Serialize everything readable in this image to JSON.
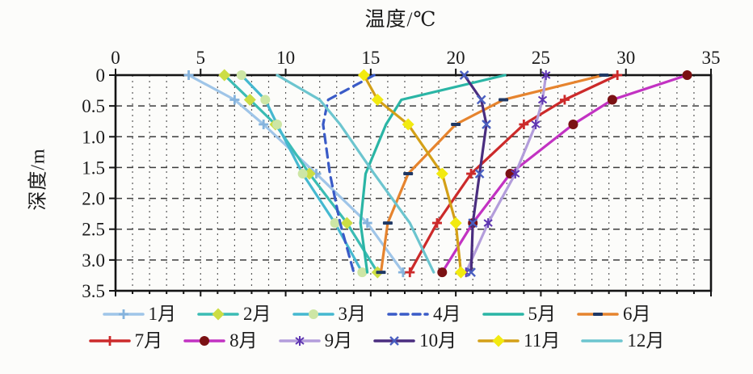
{
  "chart_data": {
    "type": "line",
    "title": "温度/℃",
    "xlabel": "温度/℃",
    "ylabel": "深度/m",
    "x_axis": {
      "min": 0,
      "max": 35,
      "major_tick_step": 5,
      "minor_grid_step": 1,
      "position": "top",
      "ticks": [
        0,
        5,
        10,
        15,
        20,
        25,
        30,
        35
      ],
      "tick_labels": [
        "0",
        "5",
        "10",
        "15",
        "20",
        "25",
        "30",
        "35"
      ]
    },
    "y_axis": {
      "min": 0,
      "max": 3.5,
      "tick_step": 0.5,
      "inverted": true,
      "ticks": [
        0,
        0.5,
        1.0,
        1.5,
        2.0,
        2.5,
        3.0,
        3.5
      ],
      "tick_labels": [
        "0",
        "0.5",
        "1.0",
        "1.5",
        "2.0",
        "2.5",
        "3.0",
        "3.5"
      ]
    },
    "grid": {
      "vertical_step_c": 1,
      "horizontal_step_m": 0.5,
      "style": "dashed"
    },
    "depths_m": [
      0,
      0.4,
      0.8,
      1.6,
      2.4,
      3.2
    ],
    "series": [
      {
        "name": "1月",
        "color": "#9fc5e8",
        "marker": "plus",
        "marker_color": "#85b3dd",
        "dash": false,
        "values": [
          4.3,
          7.0,
          8.7,
          11.8,
          14.8,
          16.9
        ]
      },
      {
        "name": "2月",
        "color": "#3bbcb4",
        "marker": "diamond",
        "marker_color": "#ccdd44",
        "dash": false,
        "values": [
          6.4,
          7.9,
          9.4,
          11.4,
          13.6,
          15.4
        ]
      },
      {
        "name": "3月",
        "color": "#45b8d0",
        "marker": "circle",
        "marker_color": "#cde6a5",
        "dash": false,
        "values": [
          7.4,
          8.8,
          9.5,
          11.0,
          12.9,
          14.5
        ]
      },
      {
        "name": "4月",
        "color": "#3a5bc7",
        "marker": "none",
        "marker_color": "#3a5bc7",
        "dash": true,
        "values": [
          15.2,
          12.5,
          12.2,
          12.6,
          13.2,
          14.0
        ]
      },
      {
        "name": "5月",
        "color": "#2ab5a5",
        "marker": "none",
        "marker_color": "#2ab5a5",
        "dash": false,
        "values": [
          22.9,
          16.8,
          15.9,
          14.7,
          14.4,
          14.8
        ]
      },
      {
        "name": "6月",
        "color": "#e6842e",
        "marker": "dash",
        "marker_color": "#1f3864",
        "dash": false,
        "values": [
          28.7,
          22.8,
          20.0,
          17.2,
          16.0,
          15.6
        ]
      },
      {
        "name": "7月",
        "color": "#cc2a2a",
        "marker": "plus",
        "marker_color": "#cc2a2a",
        "dash": false,
        "values": [
          29.5,
          26.4,
          24.0,
          20.9,
          18.9,
          17.3
        ]
      },
      {
        "name": "8月",
        "color": "#c232c2",
        "marker": "circle",
        "marker_color": "#7b1113",
        "dash": false,
        "values": [
          33.6,
          29.2,
          26.9,
          23.2,
          21.0,
          19.2
        ]
      },
      {
        "name": "9月",
        "color": "#b39ddb",
        "marker": "asterisk",
        "marker_color": "#5e35b1",
        "dash": false,
        "values": [
          25.3,
          25.1,
          24.7,
          23.5,
          21.9,
          20.6
        ]
      },
      {
        "name": "10月",
        "color": "#4a2d7f",
        "marker": "x",
        "marker_color": "#4a5fc0",
        "dash": false,
        "values": [
          20.5,
          21.5,
          21.8,
          21.4,
          21.0,
          20.9
        ]
      },
      {
        "name": "11月",
        "color": "#d4a017",
        "marker": "diamond",
        "marker_color": "#f2ea10",
        "dash": false,
        "values": [
          14.6,
          15.4,
          17.2,
          19.2,
          20.0,
          20.3
        ]
      },
      {
        "name": "12月",
        "color": "#6cc5cf",
        "marker": "none",
        "marker_color": "#6cc5cf",
        "dash": false,
        "values": [
          9.5,
          12.0,
          13.2,
          15.2,
          17.3,
          18.7
        ]
      }
    ],
    "legend_rows": [
      [
        0,
        1,
        2,
        3,
        4,
        5
      ],
      [
        6,
        7,
        8,
        9,
        10,
        11
      ]
    ],
    "legend_position": "bottom"
  }
}
